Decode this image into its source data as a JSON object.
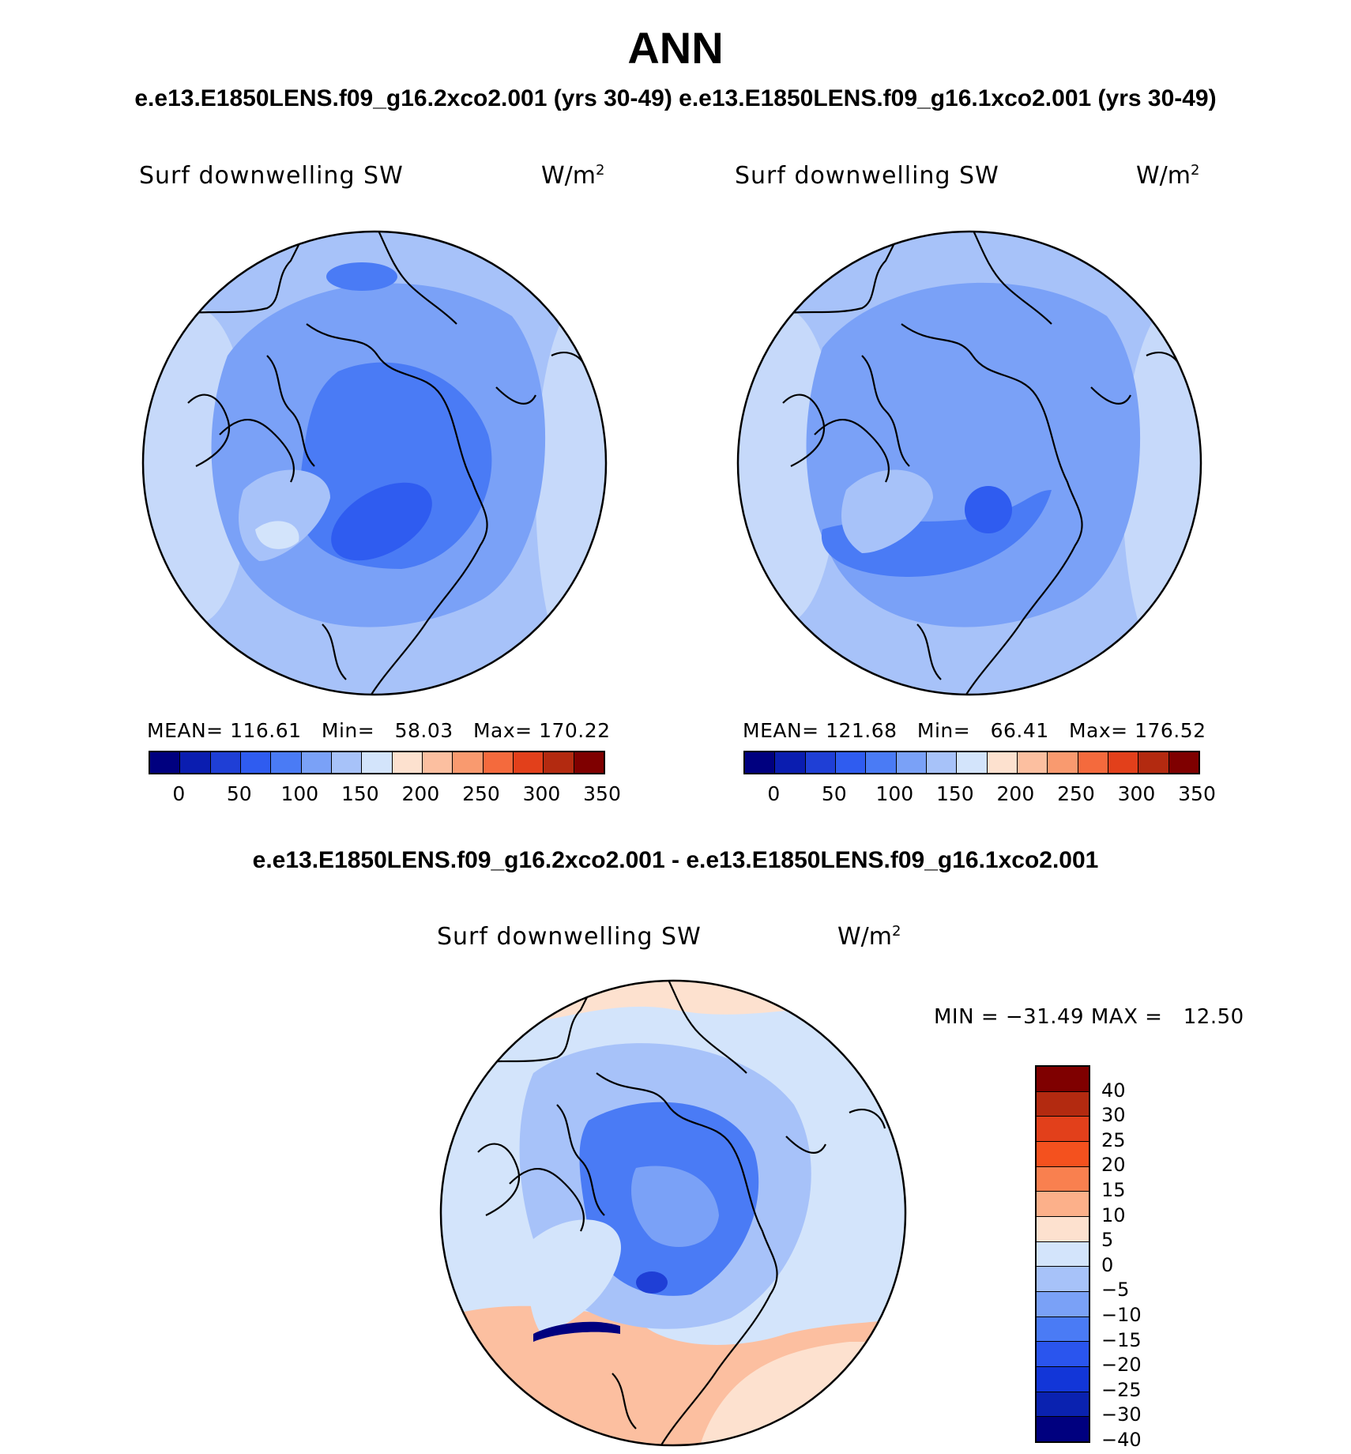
{
  "title": "ANN",
  "top_subtitle": "e.e13.E1850LENS.f09_g16.2xco2.001 (yrs 30-49) e.e13.E1850LENS.f09_g16.1xco2.001 (yrs 30-49)",
  "diff_subtitle": "e.e13.E1850LENS.f09_g16.2xco2.001 - e.e13.E1850LENS.f09_g16.1xco2.001",
  "variable": "Surf downwelling SW",
  "units": "W/m",
  "units_sup": "2",
  "panel_left": {
    "mean_label": "MEAN=",
    "mean": "116.61",
    "min_label": "Min=",
    "min": "58.03",
    "max_label": "Max=",
    "max": "170.22"
  },
  "panel_right": {
    "mean_label": "MEAN=",
    "mean": "121.68",
    "min_label": "Min=",
    "min": "66.41",
    "max_label": "Max=",
    "max": "176.52"
  },
  "colorbar_abs": {
    "colors": [
      "#00007f",
      "#0a1db0",
      "#1f3fd6",
      "#2f5cf0",
      "#4a7bf5",
      "#7aa1f7",
      "#a7c2f9",
      "#d3e4fb",
      "#fde1cf",
      "#fcbfa0",
      "#f99a6f",
      "#f46a3d",
      "#e2401b",
      "#b32a10",
      "#7f0000"
    ],
    "tick_labels": [
      "0",
      "50",
      "100",
      "150",
      "200",
      "250",
      "300",
      "350"
    ]
  },
  "diff_stats": {
    "min_label": "MIN =",
    "min": "−31.49",
    "max_label": "MAX =",
    "max": "12.50"
  },
  "colorbar_diff": {
    "colors": [
      "#7f0000",
      "#b32a10",
      "#e2401b",
      "#f4511e",
      "#f9804f",
      "#fcb08a",
      "#fde1cf",
      "#d3e4fb",
      "#a7c2f9",
      "#7aa1f7",
      "#4a7bf5",
      "#2a55ee",
      "#1236d8",
      "#0a22b0",
      "#00007f"
    ],
    "labels": [
      "40",
      "30",
      "25",
      "20",
      "15",
      "10",
      "5",
      "0",
      "−5",
      "−10",
      "−15",
      "−20",
      "−25",
      "−30",
      "−40"
    ]
  }
}
